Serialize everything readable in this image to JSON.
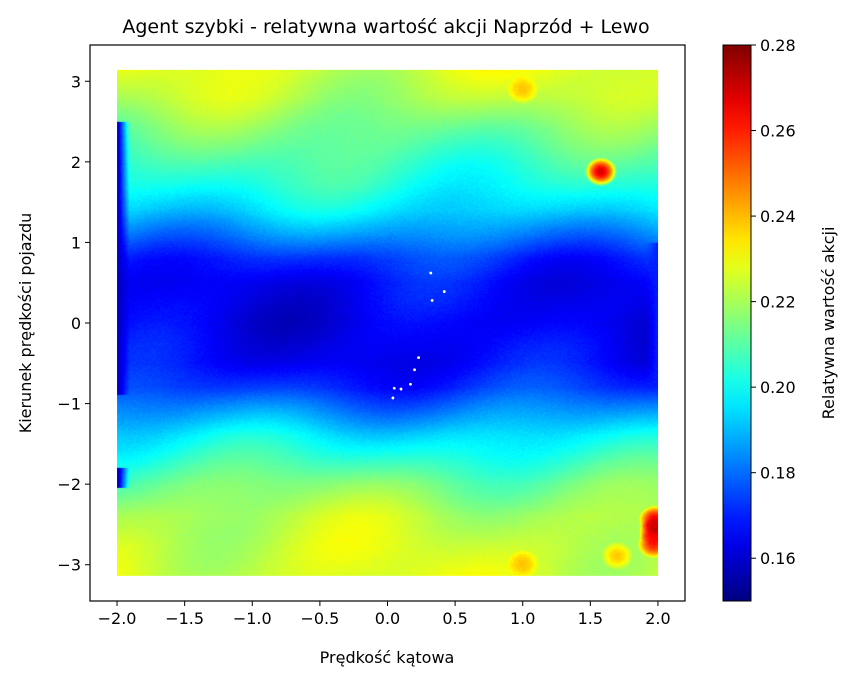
{
  "chart_data": {
    "type": "heatmap",
    "title": "Agent szybki - relatywna wartość akcji Naprzód + Lewo",
    "xlabel": "Prędkość kątowa",
    "ylabel": "Kierunek prędkości pojazdu",
    "colorbar_label": "Relatywna wartość akcji",
    "xlim": [
      -2.2,
      2.2
    ],
    "ylim": [
      -3.45,
      3.45
    ],
    "x_extent": [
      -2.0,
      2.0
    ],
    "y_extent": [
      -3.1416,
      3.1416
    ],
    "xticks": [
      -2.0,
      -1.5,
      -1.0,
      -0.5,
      0.0,
      0.5,
      1.0,
      1.5,
      2.0
    ],
    "xtick_labels": [
      "−2.0",
      "−1.5",
      "−1.0",
      "−0.5",
      "0.0",
      "0.5",
      "1.0",
      "1.5",
      "2.0"
    ],
    "yticks": [
      -3,
      -2,
      -1,
      0,
      1,
      2,
      3
    ],
    "ytick_labels": [
      "−3",
      "−2",
      "−1",
      "0",
      "1",
      "2",
      "3"
    ],
    "color_range": [
      0.15,
      0.28
    ],
    "cbar_ticks": [
      0.16,
      0.18,
      0.2,
      0.22,
      0.24,
      0.26,
      0.28
    ],
    "cbar_tick_labels": [
      "0.16",
      "0.18",
      "0.20",
      "0.22",
      "0.24",
      "0.26",
      "0.28"
    ],
    "colormap": "jet",
    "row_profile": {
      "y": [
        -3.14,
        -2.8,
        -2.4,
        -2.0,
        -1.7,
        -1.4,
        -1.1,
        -0.8,
        -0.5,
        0.0,
        0.5,
        0.8,
        1.1,
        1.4,
        1.7,
        2.0,
        2.4,
        2.8,
        3.14
      ],
      "value": [
        0.226,
        0.225,
        0.222,
        0.214,
        0.205,
        0.196,
        0.184,
        0.172,
        0.166,
        0.164,
        0.166,
        0.172,
        0.184,
        0.195,
        0.202,
        0.207,
        0.214,
        0.222,
        0.226
      ]
    },
    "edge_columns": [
      {
        "x": -2.0,
        "y_range": [
          -0.9,
          2.5
        ],
        "value": 0.158
      },
      {
        "x": -2.0,
        "y_range": [
          -2.05,
          -1.8
        ],
        "value": 0.155
      },
      {
        "x": 2.0,
        "y_range": [
          -0.8,
          1.0
        ],
        "value": 0.17
      }
    ],
    "hotspots": [
      {
        "x": 1.58,
        "y": 1.88,
        "value": 0.275
      },
      {
        "x": 1.98,
        "y": -2.45,
        "value": 0.27
      },
      {
        "x": 1.98,
        "y": -2.6,
        "value": 0.275
      },
      {
        "x": 1.97,
        "y": -2.75,
        "value": 0.265
      },
      {
        "x": 1.0,
        "y": -3.0,
        "value": 0.24
      },
      {
        "x": 1.7,
        "y": -2.9,
        "value": 0.24
      },
      {
        "x": 1.0,
        "y": 2.9,
        "value": 0.24
      }
    ],
    "empty_points": [
      [
        0.32,
        0.62
      ],
      [
        0.42,
        0.39
      ],
      [
        0.33,
        0.28
      ],
      [
        0.23,
        -0.43
      ],
      [
        0.2,
        -0.58
      ],
      [
        0.17,
        -0.76
      ],
      [
        0.1,
        -0.82
      ],
      [
        0.05,
        -0.81
      ],
      [
        0.04,
        -0.93
      ]
    ],
    "grid": false,
    "legend": "none"
  }
}
